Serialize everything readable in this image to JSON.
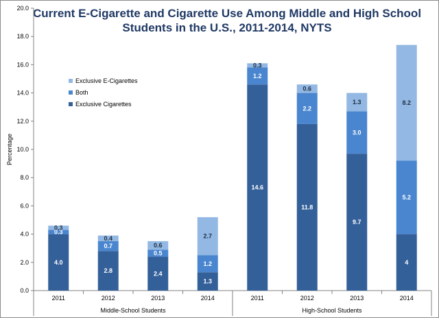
{
  "chart_data": {
    "type": "bar",
    "stacked": true,
    "title_lines": [
      "Current E-Cigarette and Cigarette Use Among Middle and High School",
      "Students in the U.S., 2011-2014, NYTS"
    ],
    "ylabel": "Percentage",
    "ylim": [
      0,
      20
    ],
    "yticks": [
      "0.0",
      "2.0",
      "4.0",
      "6.0",
      "8.0",
      "10.0",
      "12.0",
      "14.0",
      "16.0",
      "18.0",
      "20.0"
    ],
    "groups": [
      "Middle-School Students",
      "High-School Students"
    ],
    "categories": [
      "2011",
      "2012",
      "2013",
      "2014",
      "2011",
      "2012",
      "2013",
      "2014"
    ],
    "legend_position": "upper-left",
    "series": [
      {
        "name": "Exclusive Cigarettes",
        "color": "#34609a",
        "label_color": "#ffffff",
        "values": [
          4.0,
          2.8,
          2.4,
          1.3,
          14.6,
          11.8,
          9.7,
          4
        ],
        "labels": [
          "4.0",
          "2.8",
          "2.4",
          "1.3",
          "14.6",
          "11.8",
          "9.7",
          "4"
        ]
      },
      {
        "name": "Both",
        "color": "#4a86cf",
        "label_color": "#ffffff",
        "values": [
          0.3,
          0.7,
          0.5,
          1.2,
          1.2,
          2.2,
          3.0,
          5.2
        ],
        "labels": [
          "0.3",
          "0.7",
          "0.5",
          "1.2",
          "1.2",
          "2.2",
          "3.0",
          "5.2"
        ]
      },
      {
        "name": "Exclusive E-Cigarettes",
        "color": "#92b8e3",
        "label_color": "#1f2f44",
        "values": [
          0.3,
          0.4,
          0.6,
          2.7,
          0.3,
          0.6,
          1.3,
          8.2
        ],
        "labels": [
          "0.3",
          "0.4",
          "0.6",
          "2.7",
          "0.3",
          "0.6",
          "1.3",
          "8.2"
        ]
      }
    ],
    "legend_order": [
      "Exclusive E-Cigarettes",
      "Both",
      "Exclusive Cigarettes"
    ]
  }
}
